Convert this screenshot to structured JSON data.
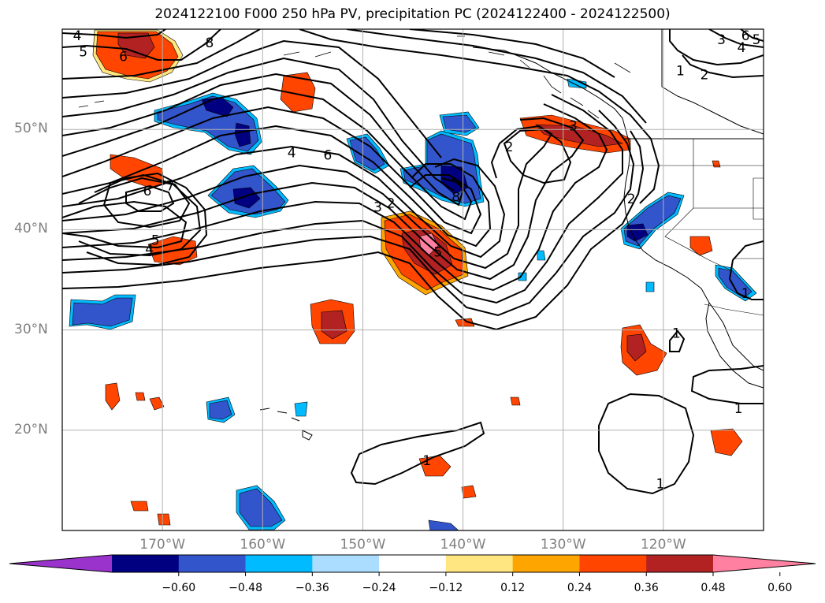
{
  "title": "2024122100 F000 250 hPa PV, precipitation PC (2024122400 - 2024122500)",
  "map": {
    "lon_range": [
      -180,
      -110
    ],
    "lat_range": [
      10,
      60
    ],
    "lat_labels": [
      {
        "lat": 50,
        "text": "50°N"
      },
      {
        "lat": 40,
        "text": "40°N"
      },
      {
        "lat": 30,
        "text": "30°N"
      },
      {
        "lat": 20,
        "text": "20°N"
      }
    ],
    "lon_labels": [
      {
        "lon": -170,
        "text": "170°W"
      },
      {
        "lon": -160,
        "text": "160°W"
      },
      {
        "lon": -150,
        "text": "150°W"
      },
      {
        "lon": -140,
        "text": "140°W"
      },
      {
        "lon": -130,
        "text": "130°W"
      },
      {
        "lon": -120,
        "text": "120°W"
      }
    ],
    "grid_color": "#b0b0b0",
    "contour_labels": [
      {
        "lon": -178.5,
        "lat": 59.3,
        "text": "4"
      },
      {
        "lon": -177.9,
        "lat": 57.7,
        "text": "5"
      },
      {
        "lon": -173.9,
        "lat": 57.2,
        "text": "6"
      },
      {
        "lon": -165.3,
        "lat": 58.6,
        "text": "8"
      },
      {
        "lon": -171.5,
        "lat": 43.8,
        "text": "6"
      },
      {
        "lon": -169.2,
        "lat": 44.3,
        "text": "7"
      },
      {
        "lon": -170.7,
        "lat": 38.9,
        "text": "5"
      },
      {
        "lon": -171.3,
        "lat": 38.0,
        "text": "4"
      },
      {
        "lon": -157.1,
        "lat": 47.6,
        "text": "4"
      },
      {
        "lon": -153.5,
        "lat": 47.4,
        "text": "6"
      },
      {
        "lon": -148.5,
        "lat": 42.2,
        "text": "3"
      },
      {
        "lon": -147.2,
        "lat": 42.6,
        "text": "2"
      },
      {
        "lon": -142.5,
        "lat": 37.7,
        "text": "5"
      },
      {
        "lon": -140.7,
        "lat": 43.2,
        "text": "8"
      },
      {
        "lon": -135.4,
        "lat": 48.2,
        "text": "2"
      },
      {
        "lon": -129.0,
        "lat": 50.3,
        "text": "3"
      },
      {
        "lon": -123.2,
        "lat": 43.0,
        "text": "2"
      },
      {
        "lon": -111.8,
        "lat": 59.3,
        "text": "6"
      },
      {
        "lon": -112.2,
        "lat": 58.1,
        "text": "4"
      },
      {
        "lon": -110.7,
        "lat": 58.9,
        "text": "5"
      },
      {
        "lon": -114.2,
        "lat": 58.9,
        "text": "3"
      },
      {
        "lon": -118.3,
        "lat": 55.8,
        "text": "1"
      },
      {
        "lon": -115.9,
        "lat": 55.4,
        "text": "2"
      },
      {
        "lon": -111.8,
        "lat": 33.6,
        "text": "1"
      },
      {
        "lon": -118.7,
        "lat": 29.6,
        "text": "1"
      },
      {
        "lon": -112.5,
        "lat": 22.1,
        "text": "1"
      },
      {
        "lon": -120.3,
        "lat": 14.6,
        "text": "1"
      },
      {
        "lon": -143.6,
        "lat": 16.9,
        "text": "1"
      }
    ]
  },
  "colorbar": {
    "colors": [
      "#9933cc",
      "#000080",
      "#3355cc",
      "#00bbff",
      "#aaddff",
      "#ffffff",
      "#ffe680",
      "#ffa500",
      "#ff4500",
      "#b22222",
      "#ff80a0"
    ],
    "ticks": [
      "−0.60",
      "−0.48",
      "−0.36",
      "−0.24",
      "−0.12",
      "0.12",
      "0.24",
      "0.36",
      "0.48",
      "0.60"
    ]
  }
}
